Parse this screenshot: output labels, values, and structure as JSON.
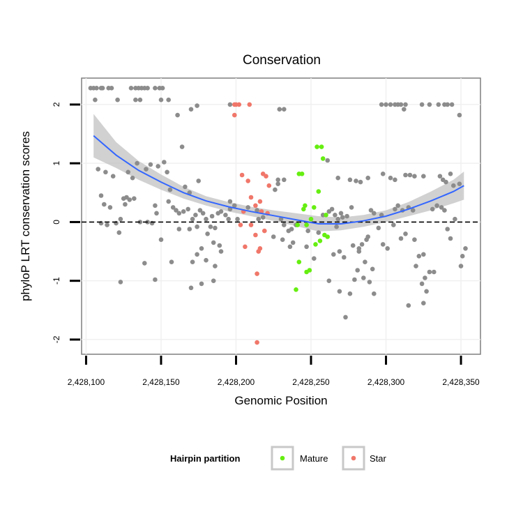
{
  "chart_data": {
    "type": "scatter",
    "title": "Conservation",
    "xlabel": "Genomic Position",
    "ylabel": "phyloP LRT conservation scores",
    "xlim": [
      2428097,
      2428363
    ],
    "ylim": [
      -2.25,
      2.45
    ],
    "x_ticks": [
      2428100,
      2428150,
      2428200,
      2428250,
      2428300,
      2428350
    ],
    "x_tick_labels": [
      "2,428,100",
      "2,428,150",
      "2,428,200",
      "2,428,250",
      "2,428,300",
      "2,428,350"
    ],
    "y_ticks": [
      -2,
      -1,
      0,
      1,
      2
    ],
    "y_tick_labels": [
      "-2",
      "-1",
      "0",
      "1",
      "2"
    ],
    "reference_line": {
      "y": 0,
      "style": "dashed"
    },
    "grid": true,
    "legend": {
      "title": "Hairpin partition",
      "position": "bottom",
      "entries": [
        {
          "name": "Mature",
          "color": "#66ee11"
        },
        {
          "name": "Star",
          "color": "#f0776a"
        }
      ]
    },
    "colors": {
      "other": "#8c8c8c",
      "Mature": "#66ee11",
      "Star": "#f0776a",
      "smooth": "#3366ff",
      "ribbon": "#bdbdbd"
    },
    "smooth": {
      "x": [
        2428105,
        2428120,
        2428135,
        2428150,
        2428165,
        2428180,
        2428195,
        2428210,
        2428225,
        2428240,
        2428255,
        2428270,
        2428285,
        2428300,
        2428315,
        2428330,
        2428345,
        2428352
      ],
      "y": [
        1.47,
        1.14,
        0.88,
        0.68,
        0.5,
        0.36,
        0.26,
        0.18,
        0.11,
        0.04,
        -0.03,
        -0.03,
        0.02,
        0.1,
        0.22,
        0.36,
        0.52,
        0.62
      ],
      "lower": [
        1.1,
        0.92,
        0.72,
        0.55,
        0.4,
        0.28,
        0.18,
        0.1,
        0.02,
        -0.07,
        -0.16,
        -0.14,
        -0.08,
        0.0,
        0.1,
        0.2,
        0.32,
        0.38
      ],
      "upper": [
        1.84,
        1.36,
        1.04,
        0.81,
        0.6,
        0.44,
        0.34,
        0.26,
        0.2,
        0.15,
        0.1,
        0.08,
        0.12,
        0.2,
        0.34,
        0.52,
        0.72,
        0.86
      ]
    },
    "series": [
      {
        "name": "Mature",
        "points": [
          [
            2428242,
            0.82
          ],
          [
            2428244,
            0.82
          ],
          [
            2428245,
            0.22
          ],
          [
            2428246,
            0.28
          ],
          [
            2428247,
            -0.05
          ],
          [
            2428241,
            -0.05
          ],
          [
            2428242,
            -0.68
          ],
          [
            2428240,
            -1.15
          ],
          [
            2428247,
            -0.85
          ],
          [
            2428249,
            -0.82
          ],
          [
            2428252,
            0.25
          ],
          [
            2428253,
            -0.38
          ],
          [
            2428254,
            1.28
          ],
          [
            2428255,
            0.52
          ],
          [
            2428256,
            -0.32
          ],
          [
            2428257,
            1.28
          ],
          [
            2428258,
            1.08
          ],
          [
            2428259,
            -0.22
          ],
          [
            2428260,
            0.12
          ],
          [
            2428261,
            -0.25
          ],
          [
            2428250,
            0.05
          ]
        ]
      },
      {
        "name": "Star",
        "points": [
          [
            2428199,
            2.0
          ],
          [
            2428200,
            2.0
          ],
          [
            2428202,
            2.0
          ],
          [
            2428199,
            1.82
          ],
          [
            2428209,
            2.0
          ],
          [
            2428204,
            0.8
          ],
          [
            2428208,
            0.7
          ],
          [
            2428210,
            0.42
          ],
          [
            2428213,
            0.28
          ],
          [
            2428216,
            0.35
          ],
          [
            2428217,
            0.18
          ],
          [
            2428218,
            0.82
          ],
          [
            2428220,
            0.78
          ],
          [
            2428222,
            0.62
          ],
          [
            2428203,
            -0.05
          ],
          [
            2428210,
            -0.05
          ],
          [
            2428206,
            -0.42
          ],
          [
            2428213,
            -0.22
          ],
          [
            2428219,
            -0.15
          ],
          [
            2428215,
            -0.5
          ],
          [
            2428216,
            -0.45
          ],
          [
            2428214,
            -0.88
          ],
          [
            2428214,
            -2.05
          ],
          [
            2428205,
            0.18
          ],
          [
            2428221,
            0.15
          ]
        ]
      },
      {
        "name": "",
        "points": [
          [
            2428103,
            2.28
          ],
          [
            2428105,
            2.28
          ],
          [
            2428107,
            2.28
          ],
          [
            2428110,
            2.28
          ],
          [
            2428111,
            2.28
          ],
          [
            2428115,
            2.28
          ],
          [
            2428117,
            2.28
          ],
          [
            2428130,
            2.28
          ],
          [
            2428133,
            2.28
          ],
          [
            2428135,
            2.28
          ],
          [
            2428137,
            2.28
          ],
          [
            2428139,
            2.28
          ],
          [
            2428141,
            2.28
          ],
          [
            2428146,
            2.28
          ],
          [
            2428149,
            2.28
          ],
          [
            2428151,
            2.28
          ],
          [
            2428106,
            2.08
          ],
          [
            2428121,
            2.08
          ],
          [
            2428133,
            2.08
          ],
          [
            2428136,
            2.08
          ],
          [
            2428150,
            2.08
          ],
          [
            2428155,
            2.08
          ],
          [
            2428161,
            1.82
          ],
          [
            2428170,
            1.92
          ],
          [
            2428174,
            1.98
          ],
          [
            2428196,
            2.0
          ],
          [
            2428229,
            1.92
          ],
          [
            2428232,
            1.92
          ],
          [
            2428297,
            2.0
          ],
          [
            2428300,
            2.0
          ],
          [
            2428303,
            2.0
          ],
          [
            2428306,
            2.0
          ],
          [
            2428308,
            2.0
          ],
          [
            2428310,
            2.0
          ],
          [
            2428313,
            2.0
          ],
          [
            2428312,
            1.92
          ],
          [
            2428324,
            2.0
          ],
          [
            2428329,
            2.0
          ],
          [
            2428335,
            2.0
          ],
          [
            2428339,
            2.0
          ],
          [
            2428341,
            2.0
          ],
          [
            2428344,
            2.0
          ],
          [
            2428349,
            1.82
          ],
          [
            2428164,
            1.28
          ],
          [
            2428143,
            0.98
          ],
          [
            2428148,
            0.95
          ],
          [
            2428152,
            1.02
          ],
          [
            2428154,
            0.85
          ],
          [
            2428140,
            0.9
          ],
          [
            2428134,
            1.0
          ],
          [
            2428131,
            0.75
          ],
          [
            2428128,
            0.85
          ],
          [
            2428118,
            0.78
          ],
          [
            2428116,
            0.25
          ],
          [
            2428110,
            0.45
          ],
          [
            2428112,
            0.3
          ],
          [
            2428114,
            -0.05
          ],
          [
            2428110,
            -0.02
          ],
          [
            2428120,
            -0.02
          ],
          [
            2428122,
            -0.18
          ],
          [
            2428123,
            0.05
          ],
          [
            2428125,
            0.4
          ],
          [
            2428127,
            0.42
          ],
          [
            2428129,
            0.38
          ],
          [
            2428132,
            0.4
          ],
          [
            2428126,
            0.3
          ],
          [
            2428136,
            0.0
          ],
          [
            2428141,
            0.0
          ],
          [
            2428144,
            -0.02
          ],
          [
            2428146,
            0.28
          ],
          [
            2428147,
            0.15
          ],
          [
            2428155,
            0.35
          ],
          [
            2428158,
            0.25
          ],
          [
            2428160,
            0.2
          ],
          [
            2428162,
            0.15
          ],
          [
            2428165,
            0.18
          ],
          [
            2428168,
            0.22
          ],
          [
            2428171,
            0.05
          ],
          [
            2428166,
            0.6
          ],
          [
            2428169,
            0.5
          ],
          [
            2428175,
            0.7
          ],
          [
            2428178,
            0.15
          ],
          [
            2428180,
            0.05
          ],
          [
            2428183,
            -0.08
          ],
          [
            2428186,
            -0.1
          ],
          [
            2428176,
            0.2
          ],
          [
            2428190,
            0.18
          ],
          [
            2428193,
            0.12
          ],
          [
            2428195,
            0.05
          ],
          [
            2428162,
            -0.12
          ],
          [
            2428169,
            -0.12
          ],
          [
            2428174,
            -0.08
          ],
          [
            2428181,
            -0.2
          ],
          [
            2428185,
            -0.35
          ],
          [
            2428189,
            -0.4
          ],
          [
            2428177,
            -0.45
          ],
          [
            2428174,
            -0.55
          ],
          [
            2428180,
            -0.65
          ],
          [
            2428171,
            -0.68
          ],
          [
            2428186,
            -0.75
          ],
          [
            2428190,
            -0.5
          ],
          [
            2428185,
            -1.0
          ],
          [
            2428177,
            -1.05
          ],
          [
            2428170,
            -1.12
          ],
          [
            2428157,
            -0.68
          ],
          [
            2428150,
            -0.3
          ],
          [
            2428139,
            -0.7
          ],
          [
            2428123,
            -1.02
          ],
          [
            2428146,
            -0.98
          ],
          [
            2428196,
            0.22
          ],
          [
            2428208,
            0.25
          ],
          [
            2428232,
            0.72
          ],
          [
            2428228,
            0.65
          ],
          [
            2428226,
            0.55
          ],
          [
            2428230,
            0.05
          ],
          [
            2428232,
            -0.05
          ],
          [
            2428235,
            -0.15
          ],
          [
            2428237,
            -0.12
          ],
          [
            2428238,
            -0.35
          ],
          [
            2428240,
            -0.05
          ],
          [
            2428236,
            -0.42
          ],
          [
            2428231,
            -0.3
          ],
          [
            2428248,
            -0.15
          ],
          [
            2428252,
            -0.62
          ],
          [
            2428262,
            0.18
          ],
          [
            2428264,
            0.22
          ],
          [
            2428266,
            0.12
          ],
          [
            2428267,
            -0.08
          ],
          [
            2428268,
            0.05
          ],
          [
            2428270,
            0.15
          ],
          [
            2428271,
            0.08
          ],
          [
            2428265,
            -0.55
          ],
          [
            2428269,
            -0.5
          ],
          [
            2428272,
            -0.6
          ],
          [
            2428262,
            -1.0
          ],
          [
            2428269,
            -1.18
          ],
          [
            2428273,
            -1.62
          ],
          [
            2428276,
            -1.22
          ],
          [
            2428279,
            -0.98
          ],
          [
            2428281,
            -0.82
          ],
          [
            2428285,
            -0.95
          ],
          [
            2428286,
            -0.68
          ],
          [
            2428282,
            -0.45
          ],
          [
            2428284,
            -0.38
          ],
          [
            2428287,
            -0.3
          ],
          [
            2428278,
            -0.4
          ],
          [
            2428291,
            -0.8
          ],
          [
            2428289,
            -1.02
          ],
          [
            2428292,
            -1.22
          ],
          [
            2428288,
            -0.25
          ],
          [
            2428290,
            0.2
          ],
          [
            2428292,
            0.15
          ],
          [
            2428295,
            -0.1
          ],
          [
            2428297,
            0.12
          ],
          [
            2428298,
            -0.38
          ],
          [
            2428301,
            -0.45
          ],
          [
            2428305,
            -0.05
          ],
          [
            2428306,
            0.22
          ],
          [
            2428308,
            0.28
          ],
          [
            2428311,
            0.2
          ],
          [
            2428310,
            -0.28
          ],
          [
            2428313,
            -0.2
          ],
          [
            2428315,
            0.25
          ],
          [
            2428318,
            0.2
          ],
          [
            2428319,
            -0.3
          ],
          [
            2428322,
            -0.58
          ],
          [
            2428320,
            -0.75
          ],
          [
            2428325,
            -0.55
          ],
          [
            2428326,
            -0.95
          ],
          [
            2428324,
            -1.05
          ],
          [
            2428327,
            -1.18
          ],
          [
            2428315,
            -1.42
          ],
          [
            2428325,
            -1.38
          ],
          [
            2428329,
            -0.85
          ],
          [
            2428332,
            -0.85
          ],
          [
            2428331,
            0.22
          ],
          [
            2428334,
            0.28
          ],
          [
            2428337,
            0.25
          ],
          [
            2428339,
            0.2
          ],
          [
            2428336,
            0.78
          ],
          [
            2428338,
            0.72
          ],
          [
            2428340,
            0.68
          ],
          [
            2428343,
            0.82
          ],
          [
            2428345,
            0.62
          ],
          [
            2428349,
            0.65
          ],
          [
            2428341,
            -0.12
          ],
          [
            2428343,
            -0.28
          ],
          [
            2428350,
            -0.75
          ],
          [
            2428351,
            -0.58
          ],
          [
            2428353,
            -0.45
          ],
          [
            2428346,
            0.05
          ],
          [
            2428261,
            1.05
          ],
          [
            2428268,
            0.75
          ],
          [
            2428276,
            0.72
          ],
          [
            2428280,
            0.7
          ],
          [
            2428283,
            0.68
          ],
          [
            2428288,
            0.75
          ],
          [
            2428298,
            0.82
          ],
          [
            2428303,
            0.75
          ],
          [
            2428306,
            0.72
          ],
          [
            2428313,
            0.8
          ],
          [
            2428316,
            0.8
          ],
          [
            2428319,
            0.78
          ],
          [
            2428325,
            0.78
          ],
          [
            2428108,
            0.9
          ],
          [
            2428113,
            0.85
          ],
          [
            2428156,
            0.55
          ],
          [
            2428215,
            0.05
          ],
          [
            2428214,
            0.2
          ],
          [
            2428218,
            0.08
          ],
          [
            2428201,
            0.05
          ],
          [
            2428225,
            -0.25
          ],
          [
            2428255,
            -0.18
          ],
          [
            2428258,
            0.12
          ],
          [
            2428274,
            0.1
          ],
          [
            2428277,
            0.25
          ],
          [
            2428282,
            -0.5
          ],
          [
            2428247,
            -0.42
          ],
          [
            2428228,
            0.72
          ],
          [
            2428196,
            0.35
          ],
          [
            2428199,
            0.28
          ],
          [
            2428188,
            0.15
          ],
          [
            2428184,
            0.1
          ],
          [
            2428173,
            0.12
          ]
        ]
      }
    ]
  }
}
